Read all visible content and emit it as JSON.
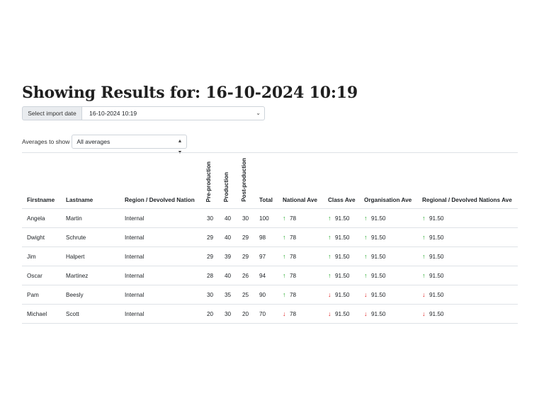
{
  "page": {
    "title": "Showing Results for: 16-10-2024 10:19"
  },
  "import": {
    "label": "Select import date",
    "selected": "16-10-2024 10:19"
  },
  "averages": {
    "label": "Averages to show",
    "selected": "All averages"
  },
  "colors": {
    "up": "#22a82a",
    "down": "#e01e1e"
  },
  "table": {
    "headers": [
      "Firstname",
      "Lastname",
      "Region / Devolved Nation",
      "Pre-production",
      "Production",
      "Post-production",
      "Total",
      "National Ave",
      "Class Ave",
      "Organisation Ave",
      "Regional / Devolved Nations Ave"
    ],
    "rows": [
      {
        "firstname": "Angela",
        "lastname": "Martin",
        "region": "Internal",
        "pre": "30",
        "prod": "40",
        "post": "30",
        "total": "100",
        "national": {
          "value": "78",
          "dir": "up"
        },
        "class": {
          "value": "91.50",
          "dir": "up"
        },
        "org": {
          "value": "91.50",
          "dir": "up"
        },
        "regional": {
          "value": "91.50",
          "dir": "up"
        }
      },
      {
        "firstname": "Dwight",
        "lastname": "Schrute",
        "region": "Internal",
        "pre": "29",
        "prod": "40",
        "post": "29",
        "total": "98",
        "national": {
          "value": "78",
          "dir": "up"
        },
        "class": {
          "value": "91.50",
          "dir": "up"
        },
        "org": {
          "value": "91.50",
          "dir": "up"
        },
        "regional": {
          "value": "91.50",
          "dir": "up"
        }
      },
      {
        "firstname": "Jim",
        "lastname": "Halpert",
        "region": "Internal",
        "pre": "29",
        "prod": "39",
        "post": "29",
        "total": "97",
        "national": {
          "value": "78",
          "dir": "up"
        },
        "class": {
          "value": "91.50",
          "dir": "up"
        },
        "org": {
          "value": "91.50",
          "dir": "up"
        },
        "regional": {
          "value": "91.50",
          "dir": "up"
        }
      },
      {
        "firstname": "Oscar",
        "lastname": "Martinez",
        "region": "Internal",
        "pre": "28",
        "prod": "40",
        "post": "26",
        "total": "94",
        "national": {
          "value": "78",
          "dir": "up"
        },
        "class": {
          "value": "91.50",
          "dir": "up"
        },
        "org": {
          "value": "91.50",
          "dir": "up"
        },
        "regional": {
          "value": "91.50",
          "dir": "up"
        }
      },
      {
        "firstname": "Pam",
        "lastname": "Beesly",
        "region": "Internal",
        "pre": "30",
        "prod": "35",
        "post": "25",
        "total": "90",
        "national": {
          "value": "78",
          "dir": "up"
        },
        "class": {
          "value": "91.50",
          "dir": "down"
        },
        "org": {
          "value": "91.50",
          "dir": "down"
        },
        "regional": {
          "value": "91.50",
          "dir": "down"
        }
      },
      {
        "firstname": "Michael",
        "lastname": "Scott",
        "region": "Internal",
        "pre": "20",
        "prod": "30",
        "post": "20",
        "total": "70",
        "national": {
          "value": "78",
          "dir": "down"
        },
        "class": {
          "value": "91.50",
          "dir": "down"
        },
        "org": {
          "value": "91.50",
          "dir": "down"
        },
        "regional": {
          "value": "91.50",
          "dir": "down"
        }
      }
    ]
  }
}
